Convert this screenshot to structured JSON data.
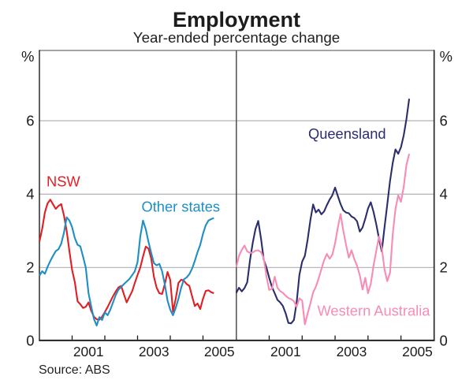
{
  "title": "Employment",
  "subtitle": "Year-ended percentage change",
  "footer": {
    "source": "Source: ABS"
  },
  "axis": {
    "unit_label": "%",
    "y_tick_labels": [
      "6",
      "4",
      "2",
      "0"
    ],
    "y_tick_values": [
      6,
      4,
      2,
      0
    ],
    "x_tick_labels": [
      "2001",
      "2003",
      "2005"
    ]
  },
  "series_labels": {
    "nsw": "NSW",
    "other_states": "Other states",
    "queensland": "Queensland",
    "western_australia": "Western Australia"
  },
  "colors": {
    "nsw": "#e01f24",
    "other_states": "#1e8fc4",
    "queensland": "#2c2e6b",
    "western_australia": "#f78cb6",
    "gridline": "#b5bac0",
    "frame": "#2b2b2b",
    "frame_top": "#6f6f6f",
    "divider": "#57575a",
    "axis_bottom": "#151515",
    "text": "#1c1c1c"
  },
  "chart_data": [
    {
      "type": "line",
      "panel": "left",
      "title": "Employment",
      "subtitle": "Year-ended percentage change",
      "ylabel": "%",
      "ylim": [
        0,
        8
      ],
      "yticks": [
        0,
        2,
        4,
        6
      ],
      "grid": "horizontal",
      "x_start": "2000-01",
      "x_frequency": "monthly",
      "x_end": "2005-05",
      "x_tick_years": [
        2001,
        2002,
        2003,
        2004,
        2005
      ],
      "x_tick_labels": [
        "2001",
        "2003",
        "2005"
      ],
      "legend_position": "inline-labels",
      "series": [
        {
          "name": "NSW",
          "color": "#e01f24",
          "values": [
            2.7,
            3.05,
            3.5,
            3.75,
            3.85,
            3.72,
            3.6,
            3.68,
            3.73,
            3.42,
            3.0,
            2.45,
            1.93,
            1.6,
            1.08,
            1.0,
            0.9,
            0.93,
            1.05,
            0.82,
            0.66,
            0.59,
            0.58,
            0.66,
            0.79,
            0.92,
            1.07,
            1.22,
            1.35,
            1.46,
            1.5,
            1.27,
            1.05,
            1.2,
            1.35,
            1.58,
            1.8,
            2.0,
            2.3,
            2.57,
            2.52,
            2.25,
            1.75,
            1.45,
            1.3,
            1.28,
            1.55,
            1.88,
            1.66,
            0.8,
            1.15,
            1.58,
            1.67,
            1.64,
            1.55,
            1.5,
            1.22,
            0.95,
            1.02,
            0.87,
            1.15,
            1.36,
            1.38,
            1.33,
            1.3
          ]
        },
        {
          "name": "Other states",
          "color": "#1e8fc4",
          "values": [
            1.78,
            1.9,
            1.83,
            2.02,
            2.18,
            2.32,
            2.45,
            2.5,
            2.65,
            2.95,
            3.37,
            3.28,
            3.1,
            2.8,
            2.62,
            2.58,
            2.3,
            2.0,
            1.31,
            0.94,
            0.6,
            0.42,
            0.65,
            0.57,
            0.78,
            0.7,
            0.85,
            1.05,
            1.25,
            1.4,
            1.47,
            1.55,
            1.62,
            1.69,
            1.79,
            1.9,
            2.15,
            2.85,
            3.28,
            3.05,
            2.7,
            2.4,
            2.12,
            2.06,
            2.1,
            1.9,
            1.54,
            1.1,
            0.85,
            0.7,
            0.9,
            1.15,
            1.45,
            1.68,
            1.73,
            1.82,
            1.97,
            2.18,
            2.42,
            2.62,
            2.92,
            3.15,
            3.28,
            3.32,
            3.35
          ]
        }
      ]
    },
    {
      "type": "line",
      "panel": "right",
      "ylabel": "%",
      "ylim": [
        0,
        8
      ],
      "yticks": [
        0,
        2,
        4,
        6
      ],
      "grid": "horizontal",
      "x_start": "2000-01",
      "x_frequency": "monthly",
      "x_end": "2005-04",
      "x_tick_years": [
        2001,
        2002,
        2003,
        2004,
        2005
      ],
      "x_tick_labels": [
        "2001",
        "2003",
        "2005"
      ],
      "legend_position": "inline-labels",
      "series": [
        {
          "name": "Queensland",
          "color": "#2c2e6b",
          "values": [
            1.31,
            1.45,
            1.35,
            1.44,
            1.6,
            2.2,
            2.67,
            3.05,
            3.27,
            2.8,
            2.22,
            2.0,
            1.72,
            1.47,
            1.3,
            1.12,
            1.05,
            0.95,
            0.75,
            0.49,
            0.48,
            0.57,
            1.05,
            1.8,
            2.16,
            2.32,
            2.76,
            3.29,
            3.72,
            3.5,
            3.58,
            3.45,
            3.53,
            3.7,
            3.85,
            3.97,
            4.18,
            3.95,
            3.73,
            3.56,
            3.5,
            3.48,
            3.39,
            3.35,
            3.26,
            2.98,
            3.09,
            3.33,
            3.61,
            3.78,
            3.52,
            3.18,
            2.79,
            2.44,
            3.09,
            3.71,
            4.35,
            4.85,
            5.22,
            5.1,
            5.28,
            5.6,
            6.05,
            6.6
          ]
        },
        {
          "name": "Western Australia",
          "color": "#f78cb6",
          "values": [
            2.01,
            2.32,
            2.48,
            2.6,
            2.44,
            2.4,
            2.41,
            2.46,
            2.47,
            2.42,
            2.26,
            1.76,
            1.39,
            1.42,
            1.75,
            1.45,
            1.36,
            1.31,
            1.23,
            1.17,
            1.14,
            1.08,
            0.93,
            1.16,
            1.1,
            0.45,
            0.75,
            1.02,
            1.32,
            1.48,
            1.7,
            1.95,
            2.2,
            2.37,
            2.24,
            2.35,
            2.66,
            3.09,
            3.46,
            3.0,
            2.62,
            2.27,
            2.47,
            2.23,
            2.05,
            1.79,
            1.4,
            1.72,
            1.3,
            1.55,
            2.05,
            2.45,
            2.85,
            2.55,
            1.95,
            1.63,
            1.85,
            2.9,
            3.6,
            3.97,
            3.79,
            4.2,
            4.8,
            5.1
          ]
        }
      ]
    }
  ]
}
